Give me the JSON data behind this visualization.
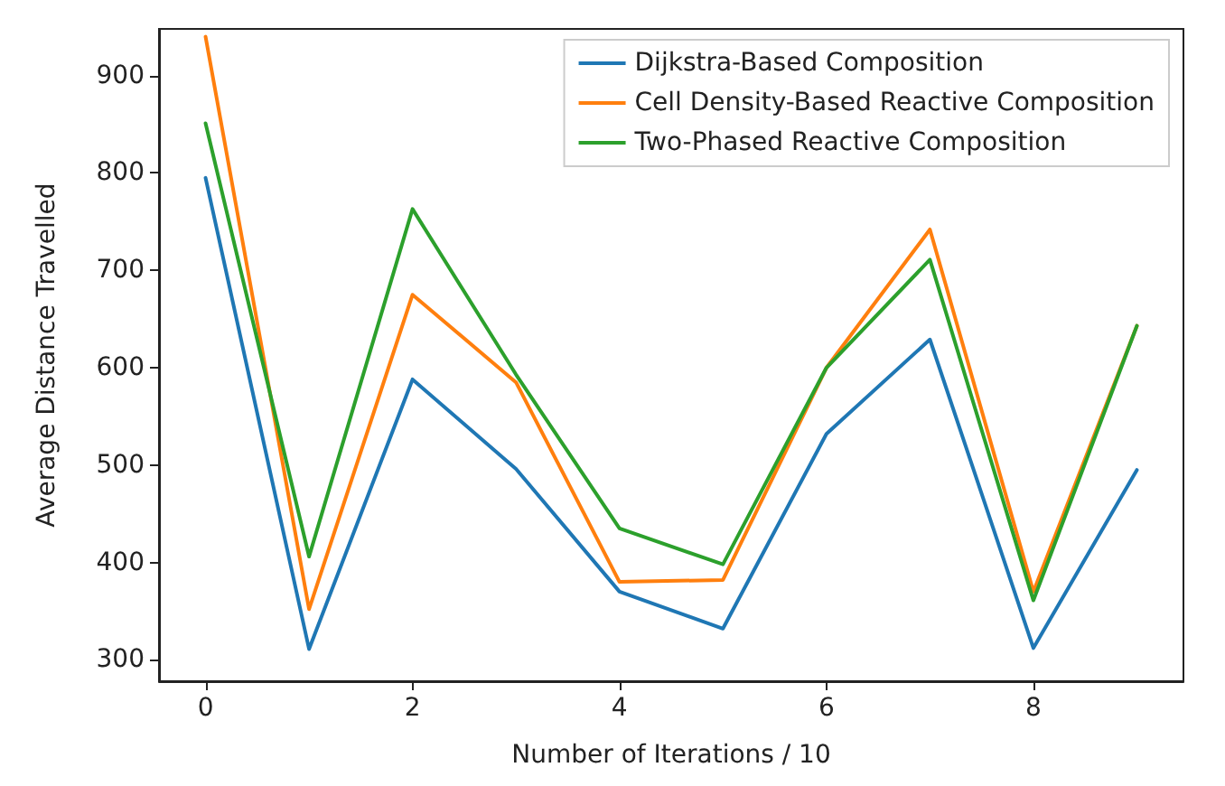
{
  "chart_data": {
    "type": "line",
    "xlabel": "Number of Iterations / 10",
    "ylabel": "Average Distance Travelled",
    "x": [
      0,
      1,
      2,
      3,
      4,
      5,
      6,
      7,
      8,
      9
    ],
    "xlim": [
      -0.45,
      9.45
    ],
    "xticks": [
      0,
      2,
      4,
      6,
      8
    ],
    "ylim": [
      278,
      948
    ],
    "yticks": [
      300,
      400,
      500,
      600,
      700,
      800,
      900
    ],
    "series": [
      {
        "name": "Dijkstra-Based Composition",
        "color": "#1f77b4",
        "values": [
          795,
          311,
          588,
          496,
          370,
          332,
          532,
          629,
          312,
          495
        ]
      },
      {
        "name": "Cell Density-Based Reactive Composition",
        "color": "#ff7f0e",
        "values": [
          940,
          352,
          675,
          585,
          380,
          382,
          600,
          742,
          370,
          643
        ]
      },
      {
        "name": "Two-Phased Reactive Composition",
        "color": "#2ca02c",
        "values": [
          851,
          406,
          763,
          593,
          435,
          398,
          600,
          711,
          361,
          643
        ]
      }
    ],
    "legend": "top right",
    "grid": false,
    "marker": "none",
    "line_style": "solid"
  }
}
